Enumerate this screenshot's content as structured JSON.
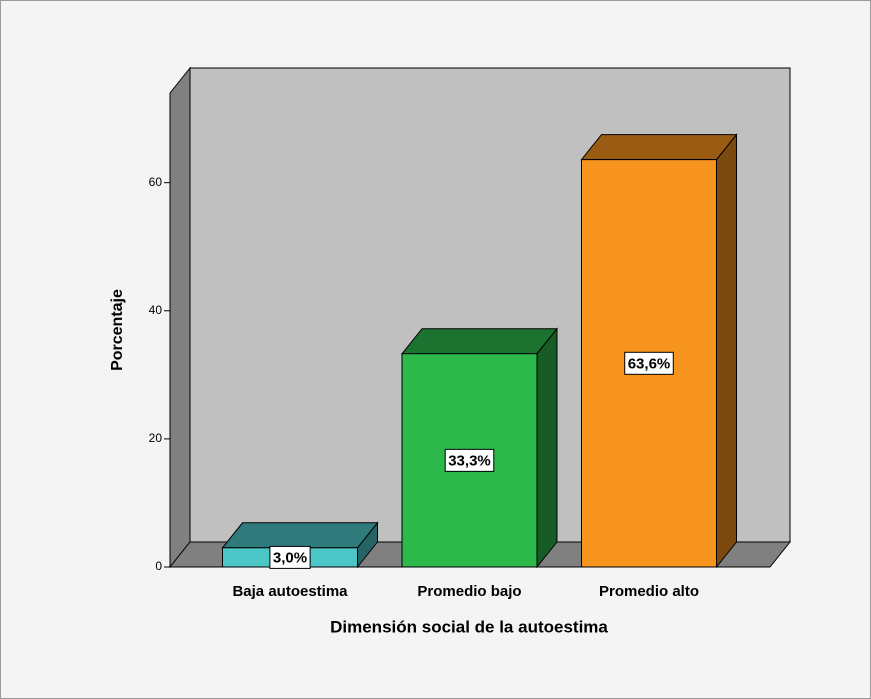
{
  "chart_data": {
    "type": "bar3d",
    "categories": [
      "Baja autoestima",
      "Promedio bajo",
      "Promedio alto"
    ],
    "values": [
      3.0,
      33.3,
      63.6
    ],
    "value_labels": [
      "3,0%",
      "33,3%",
      "63,6%"
    ],
    "colors": [
      "#4cc5c7",
      "#2db84b",
      "#f7941d"
    ],
    "xlabel": "Dimensión social de la autoestima",
    "ylabel": "Porcentaje",
    "ylim": [
      0,
      74
    ],
    "yticks": [
      0,
      20,
      40,
      60
    ]
  }
}
